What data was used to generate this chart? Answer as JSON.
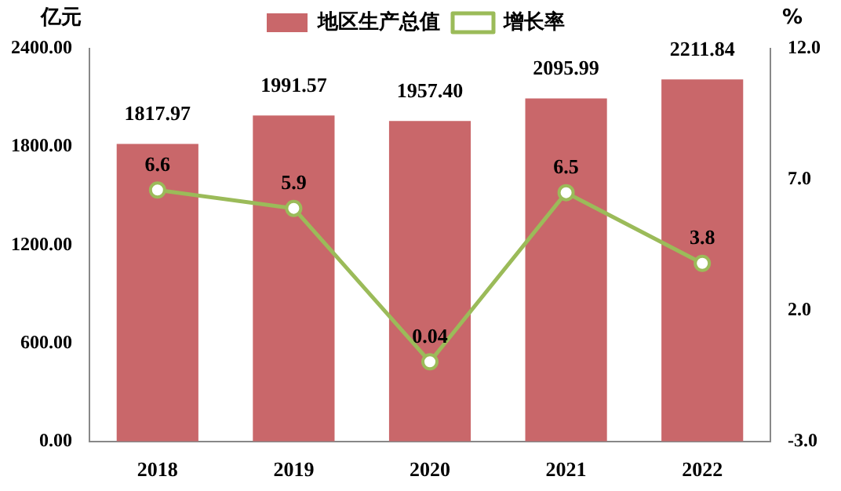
{
  "chart_data": {
    "type": "bar",
    "categories": [
      "2018",
      "2019",
      "2020",
      "2021",
      "2022"
    ],
    "ylabel": "亿元",
    "y2label": "%",
    "ylim": [
      0,
      2400
    ],
    "yticks": [
      {
        "value": 0,
        "label": "0.00"
      },
      {
        "value": 600,
        "label": "600.00"
      },
      {
        "value": 1200,
        "label": "1200.00"
      },
      {
        "value": 1800,
        "label": "1800.00"
      },
      {
        "value": 2400,
        "label": "2400.00"
      }
    ],
    "y2lim": [
      -3,
      12
    ],
    "y2ticks": [
      {
        "value": -3,
        "label": "-3.0"
      },
      {
        "value": 2,
        "label": "2.0"
      },
      {
        "value": 7,
        "label": "7.0"
      },
      {
        "value": 12,
        "label": "12.0"
      }
    ],
    "series": [
      {
        "name": "地区生产总值",
        "color": "#c9676a",
        "values": [
          1817.97,
          1991.57,
          1957.4,
          2095.99,
          2211.84
        ],
        "value_labels": [
          "1817.97",
          "1991.57",
          "1957.40",
          "2095.99",
          "2211.84"
        ]
      },
      {
        "name": "增长率",
        "type": "line",
        "axis": "y2",
        "color": "#9bbb59",
        "values": [
          6.6,
          5.9,
          0.04,
          6.5,
          3.8
        ],
        "value_labels": [
          "6.6",
          "5.9",
          "0.04",
          "6.5",
          "3.8"
        ]
      }
    ],
    "legend": "top",
    "grid": false,
    "marker": "circle",
    "line_style": "solid"
  }
}
